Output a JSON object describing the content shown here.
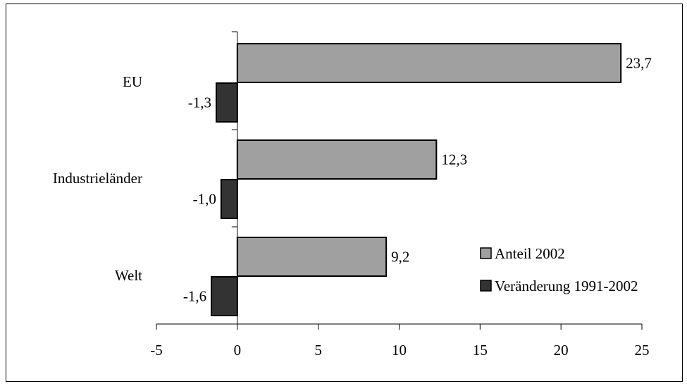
{
  "chart_data": {
    "type": "bar",
    "orientation": "horizontal",
    "categories": [
      "EU",
      "Industrieländer",
      "Welt"
    ],
    "series": [
      {
        "name": "Anteil 2002",
        "values": [
          23.7,
          12.3,
          9.2
        ],
        "color": "#a0a0a0",
        "labels": [
          "23,7",
          "12,3",
          "9,2"
        ]
      },
      {
        "name": "Veränderung 1991-2002",
        "values": [
          -1.3,
          -1.0,
          -1.6
        ],
        "color": "#333333",
        "labels": [
          "-1,3",
          "-1,0",
          "-1,6"
        ]
      }
    ],
    "xlim": [
      -5,
      25
    ],
    "xticks": [
      -5,
      0,
      5,
      10,
      15,
      20,
      25
    ],
    "xtick_labels": [
      "-5",
      "0",
      "5",
      "10",
      "15",
      "20",
      "25"
    ],
    "legend_position": "bottom-right",
    "grid": false
  }
}
